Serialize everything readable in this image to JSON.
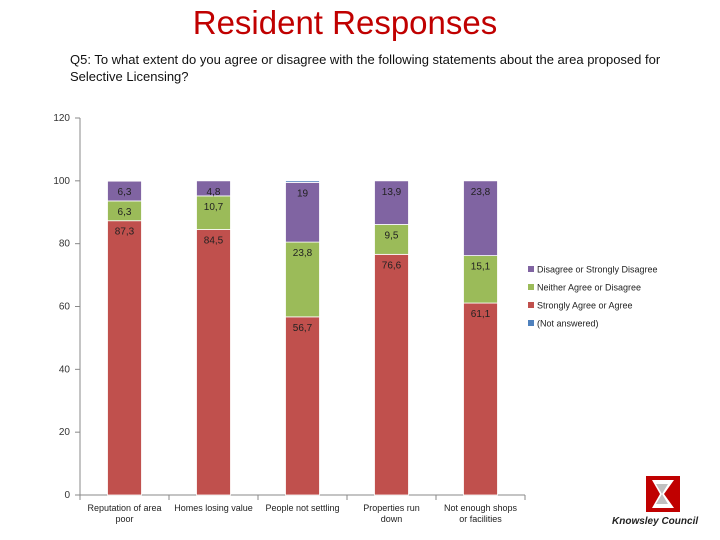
{
  "page": {
    "title": "Resident Responses",
    "question": "Q5: To what extent do you agree or disagree with the following statements about the area proposed for Selective Licensing?"
  },
  "logo": {
    "name": "Knowsley Council"
  },
  "chart_data": {
    "type": "bar",
    "stacked": true,
    "title": "",
    "xlabel": "",
    "ylabel": "",
    "ylim": [
      0,
      120
    ],
    "yticks": [
      0,
      20,
      40,
      60,
      80,
      100,
      120
    ],
    "grid": false,
    "legend_position": "right",
    "categories": [
      [
        "Reputation of area",
        "poor"
      ],
      [
        "Homes losing value"
      ],
      [
        "People not settling"
      ],
      [
        "Properties run",
        "down"
      ],
      [
        "Not enough shops",
        "or facilities"
      ]
    ],
    "series": [
      {
        "name": "Strongly Agree or Agree",
        "color": "#c0504d",
        "values": [
          87.3,
          84.5,
          56.7,
          76.6,
          61.1
        ],
        "labels": [
          "87,3",
          "84,5",
          "56,7",
          "76,6",
          "61,1"
        ]
      },
      {
        "name": "Neither Agree or Disagree",
        "color": "#9bbb59",
        "values": [
          6.3,
          10.7,
          23.8,
          9.5,
          15.1
        ],
        "labels": [
          "6,3",
          "10,7",
          "23,8",
          "9,5",
          "15,1"
        ]
      },
      {
        "name": "Disagree or Strongly Disagree",
        "color": "#8064a2",
        "values": [
          6.3,
          4.8,
          19,
          13.9,
          23.8
        ],
        "labels": [
          "6,3",
          "4,8",
          "19",
          "13,9",
          "23,8"
        ]
      },
      {
        "name": "(Not answered)",
        "color": "#4f81bd",
        "values": [
          0,
          0,
          0.5,
          0,
          0
        ],
        "labels": [
          "",
          "",
          "",
          "",
          ""
        ]
      }
    ],
    "legend_order": [
      "Disagree or Strongly Disagree",
      "Neither Agree or Disagree",
      "Strongly Agree or Agree",
      "(Not answered)"
    ]
  }
}
